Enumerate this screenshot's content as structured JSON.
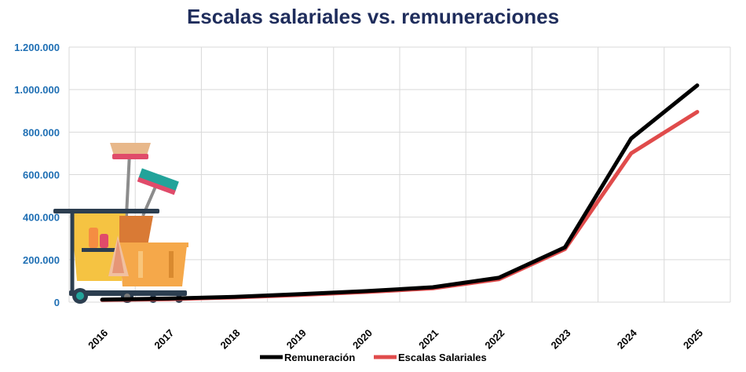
{
  "chart_data": {
    "type": "line",
    "title": "Escalas salariales vs. remuneraciones",
    "x": [
      "2016",
      "2017",
      "2018",
      "2019",
      "2020",
      "2021",
      "2022",
      "2023",
      "2024",
      "2025"
    ],
    "ylim": [
      0,
      1200000
    ],
    "yticks": [
      "0",
      "200.000",
      "400.000",
      "600.000",
      "800.000",
      "1.000.000",
      "1.200.000"
    ],
    "grid": true,
    "legend": "bottom",
    "series": [
      {
        "name": "Remuneración",
        "color": "#000000",
        "values": [
          12000,
          17000,
          25000,
          38000,
          52000,
          70000,
          115000,
          258000,
          770000,
          1020000
        ]
      },
      {
        "name": "Escalas Salariales",
        "color": "#e04b4b",
        "values": [
          10000,
          14000,
          22000,
          34000,
          48000,
          65000,
          108000,
          250000,
          700000,
          895000
        ]
      }
    ]
  },
  "illustration": {
    "name": "cleaning-cart-icon"
  }
}
